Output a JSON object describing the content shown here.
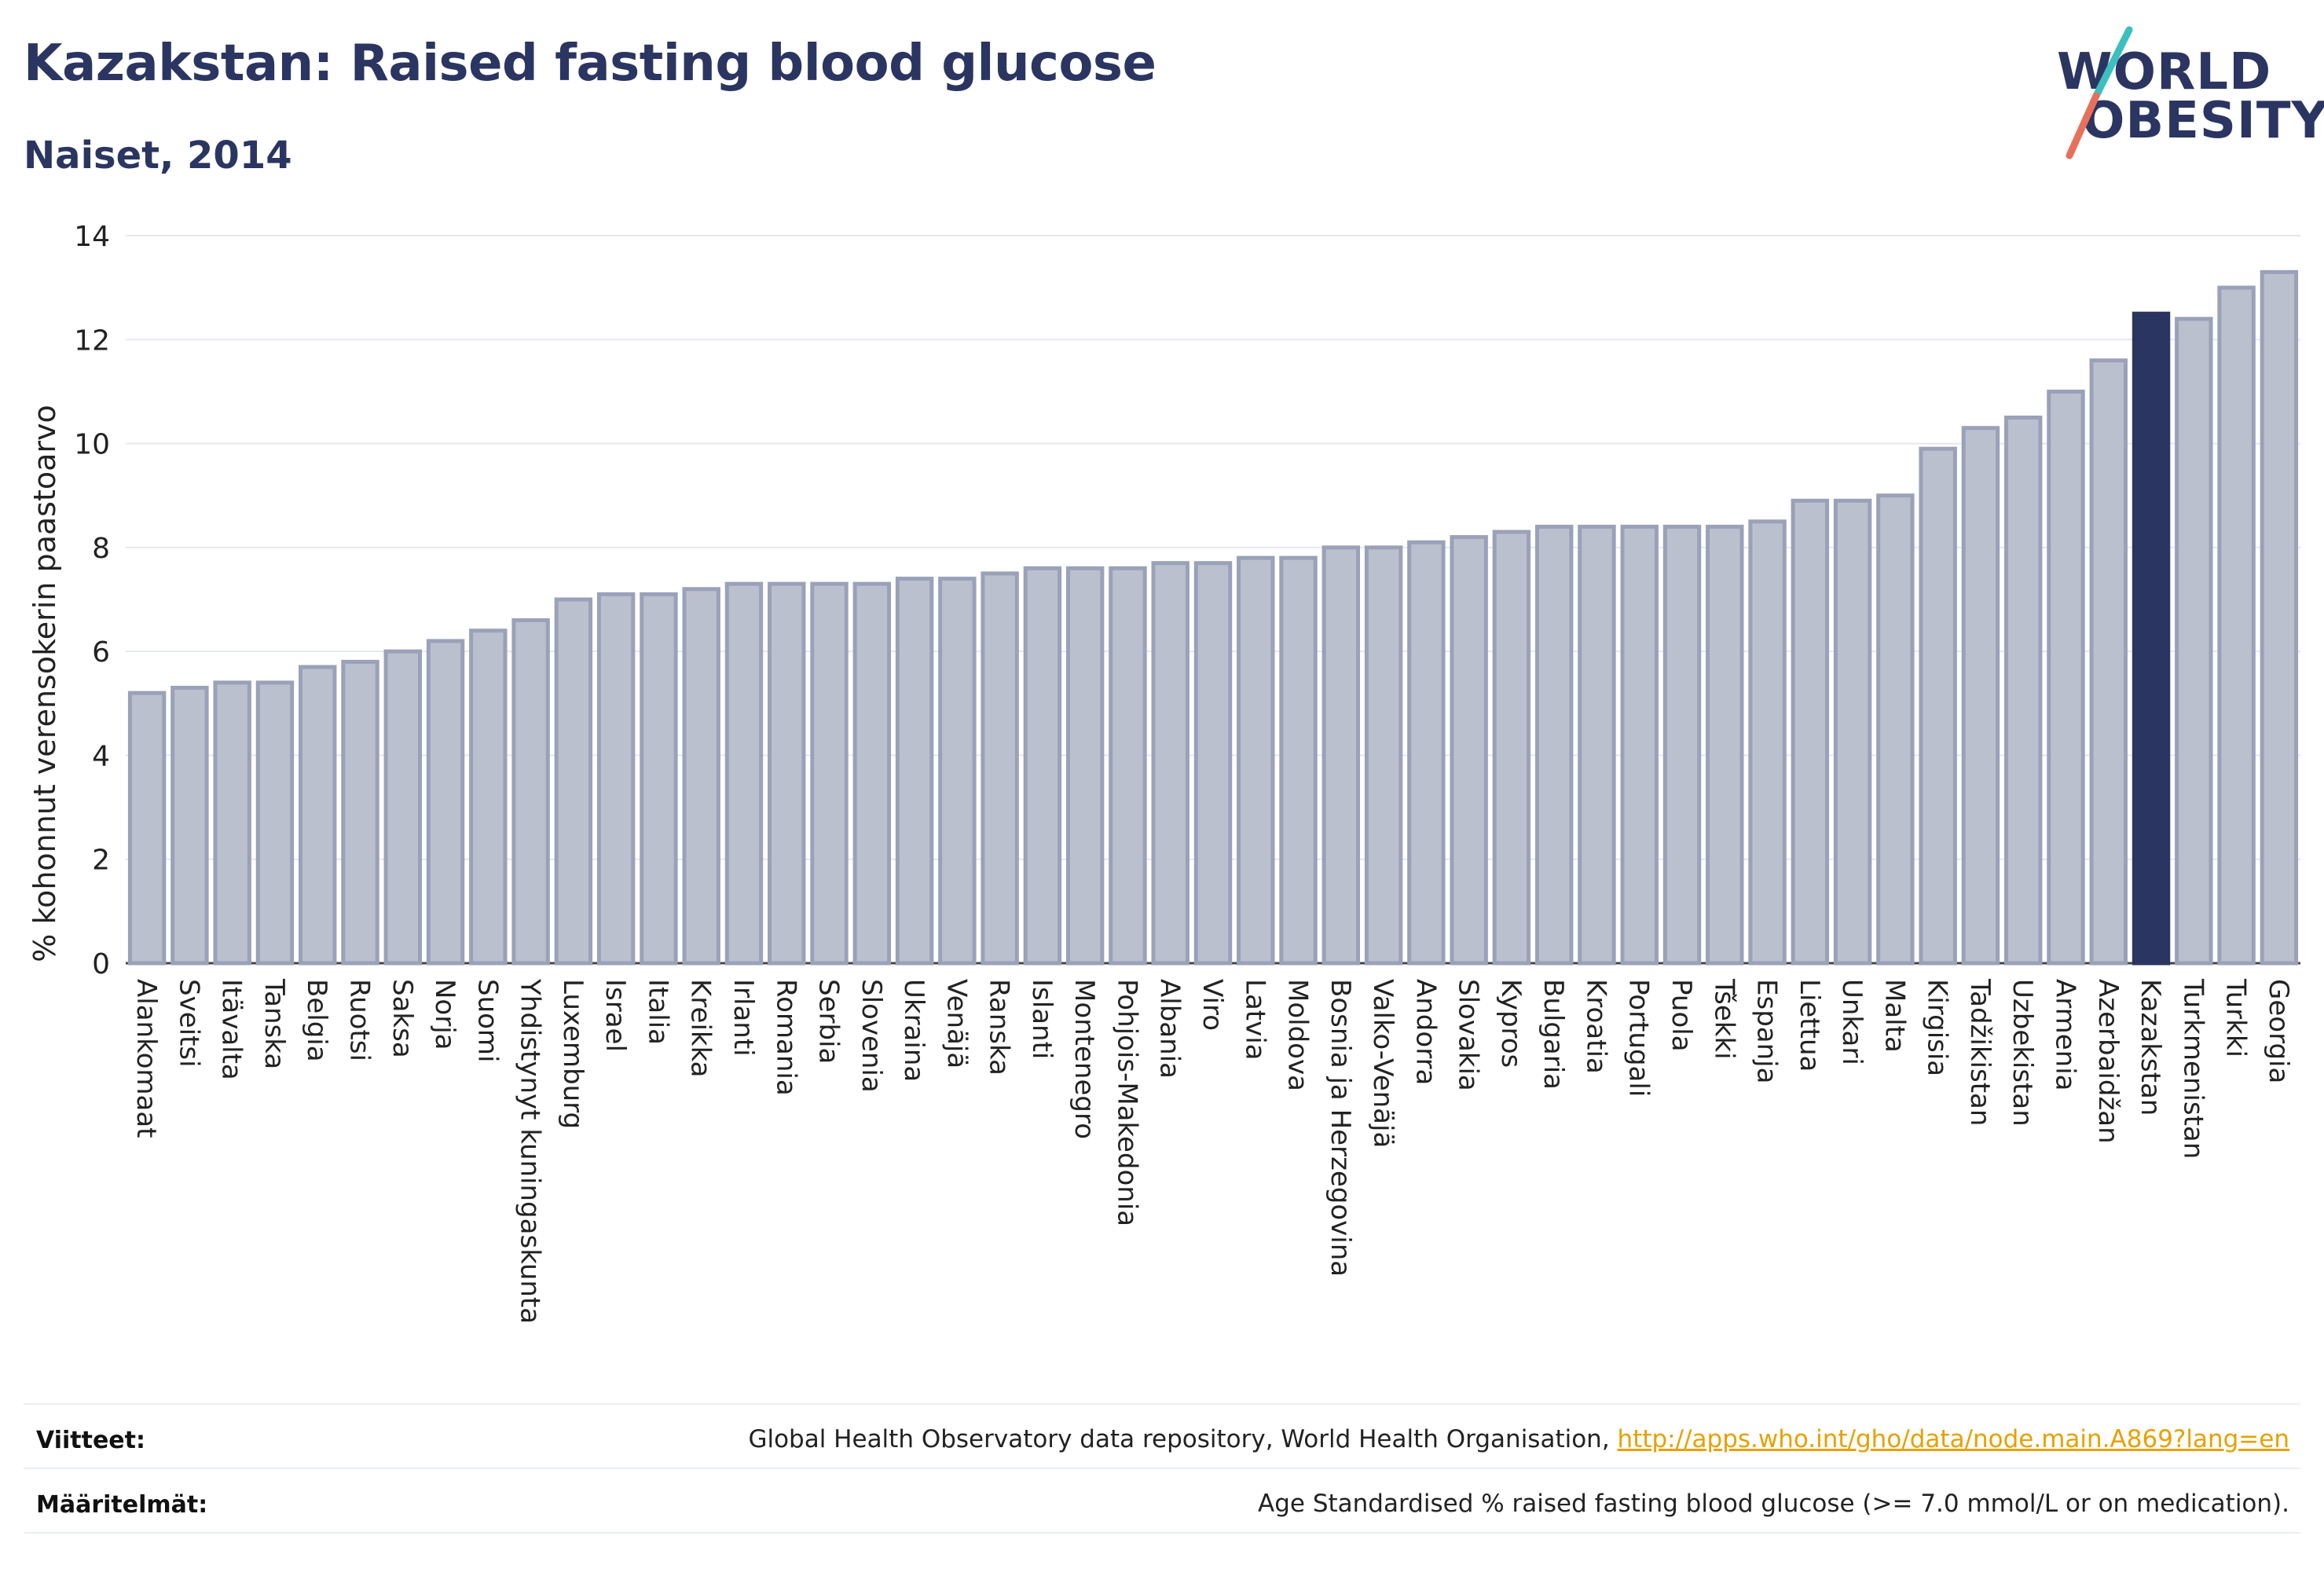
{
  "header": {
    "title": "Kazakstan: Raised fasting blood glucose",
    "subtitle": "Naiset, 2014"
  },
  "logo": {
    "line1": "WORLD",
    "line2": "OBESITY",
    "colors": {
      "text": "#2b3561",
      "slash_teal": "#3bbfbf",
      "slash_coral": "#e8705a"
    }
  },
  "chart_data": {
    "type": "bar",
    "ylabel": "% kohonnut verensokerin paastoarvo",
    "ylim": [
      0,
      14
    ],
    "yticks": [
      0,
      2,
      4,
      6,
      8,
      10,
      12,
      14
    ],
    "grid": true,
    "highlight": "Kazakstan",
    "colors": {
      "bar": "#bbc0cf",
      "bar_edge": "#9aa1b8",
      "highlight": "#2b3561"
    },
    "categories": [
      "Alankomaat",
      "Sveitsi",
      "Itävalta",
      "Tanska",
      "Belgia",
      "Ruotsi",
      "Saksa",
      "Norja",
      "Suomi",
      "Yhdistynyt kuningaskunta",
      "Luxemburg",
      "Israel",
      "Italia",
      "Kreikka",
      "Irlanti",
      "Romania",
      "Serbia",
      "Slovenia",
      "Ukraina",
      "Venäjä",
      "Ranska",
      "Islanti",
      "Montenegro",
      "Pohjois-Makedonia",
      "Albania",
      "Viro",
      "Latvia",
      "Moldova",
      "Bosnia ja Herzegovina",
      "Valko-Venäjä",
      "Andorra",
      "Slovakia",
      "Kypros",
      "Bulgaria",
      "Kroatia",
      "Portugali",
      "Puola",
      "Tšekki",
      "Espanja",
      "Liettua",
      "Unkari",
      "Malta",
      "Kirgisia",
      "Tadžikistan",
      "Uzbekistan",
      "Armenia",
      "Azerbaidžan",
      "Kazakstan",
      "Turkmenistan",
      "Turkki",
      "Georgia"
    ],
    "values": [
      5.2,
      5.3,
      5.4,
      5.4,
      5.7,
      5.8,
      6.0,
      6.2,
      6.4,
      6.6,
      7.0,
      7.1,
      7.1,
      7.2,
      7.3,
      7.3,
      7.3,
      7.3,
      7.4,
      7.4,
      7.5,
      7.6,
      7.6,
      7.6,
      7.7,
      7.7,
      7.8,
      7.8,
      8.0,
      8.0,
      8.1,
      8.2,
      8.3,
      8.4,
      8.4,
      8.4,
      8.4,
      8.4,
      8.5,
      8.9,
      8.9,
      9.0,
      9.9,
      10.3,
      10.5,
      11.0,
      11.6,
      12.5,
      12.4,
      13.0,
      13.3
    ]
  },
  "footer": {
    "sources_label": "Viitteet:",
    "sources_text": "Global Health Observatory data repository, World Health Organisation, ",
    "sources_link": "http://apps.who.int/gho/data/node.main.A869?lang=en",
    "definitions_label": "Määritelmät:",
    "definitions_text": "Age Standardised % raised fasting blood glucose (>= 7.0 mmol/L or on medication)."
  }
}
